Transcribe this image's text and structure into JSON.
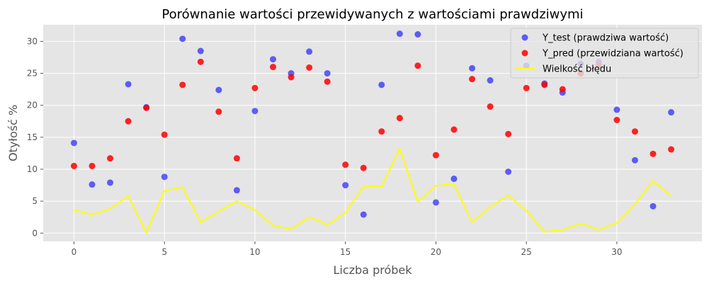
{
  "chart_data": {
    "type": "scatter",
    "title": "Porównanie wartości przewidywanych z wartościami prawdziwymi",
    "xlabel": "Liczba próbek",
    "ylabel": "Otyłość %",
    "xlim": [
      -1.7,
      34.7
    ],
    "ylim": [
      -1.3,
      32.6
    ],
    "xticks": [
      0,
      5,
      10,
      15,
      20,
      25,
      30
    ],
    "yticks": [
      0,
      5,
      10,
      15,
      20,
      25,
      30
    ],
    "grid": true,
    "legend_position": "top-right",
    "x": [
      0,
      1,
      2,
      3,
      4,
      5,
      6,
      7,
      8,
      9,
      10,
      11,
      12,
      13,
      14,
      15,
      16,
      17,
      18,
      19,
      20,
      21,
      22,
      23,
      24,
      25,
      26,
      27,
      28,
      29,
      30,
      31,
      32,
      33
    ],
    "series": [
      {
        "name": "Y_test (prawdziwa wartość)",
        "kind": "scatter",
        "color": "#0000ff",
        "values": [
          14.1,
          7.6,
          7.9,
          23.3,
          19.7,
          8.8,
          30.4,
          28.5,
          22.4,
          6.7,
          19.1,
          27.2,
          25.0,
          28.4,
          25.0,
          7.5,
          2.9,
          23.2,
          31.2,
          31.1,
          4.8,
          8.5,
          25.8,
          23.9,
          9.6,
          26.2,
          23.4,
          22.0,
          26.5,
          26.8,
          19.3,
          11.4,
          4.2,
          18.9
        ]
      },
      {
        "name": "Y_pred (przewidziana wartość)",
        "kind": "scatter",
        "color": "#ff0000",
        "values": [
          10.5,
          10.5,
          11.7,
          17.5,
          19.6,
          15.4,
          23.2,
          26.8,
          19.0,
          11.7,
          22.7,
          26.0,
          24.4,
          25.9,
          23.7,
          10.7,
          10.2,
          15.9,
          18.0,
          26.2,
          12.2,
          16.2,
          24.1,
          19.8,
          15.5,
          22.7,
          23.2,
          22.5,
          25.0,
          26.3,
          17.7,
          15.9,
          12.4,
          13.1
        ]
      },
      {
        "name": "Wielkość błędu",
        "kind": "line",
        "color": "#ffff00",
        "values": [
          3.6,
          2.9,
          3.8,
          5.8,
          0.1,
          6.6,
          7.2,
          1.7,
          3.4,
          5.0,
          3.6,
          1.2,
          0.6,
          2.5,
          1.3,
          3.2,
          7.3,
          7.3,
          13.2,
          4.9,
          7.4,
          7.7,
          1.7,
          4.1,
          5.9,
          3.5,
          0.2,
          0.5,
          1.5,
          0.5,
          1.6,
          4.5,
          8.2,
          5.8
        ]
      }
    ]
  }
}
